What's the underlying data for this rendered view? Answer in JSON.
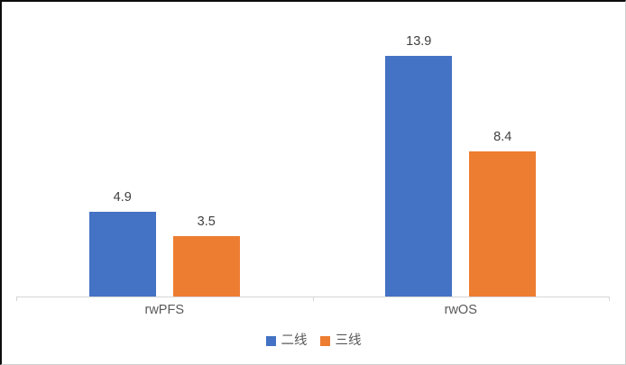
{
  "chart_data": {
    "type": "bar",
    "categories": [
      "rwPFS",
      "rwOS"
    ],
    "series": [
      {
        "name": "二线",
        "color": "#4472C4",
        "values": [
          4.9,
          13.9
        ]
      },
      {
        "name": "三线",
        "color": "#ED7D31",
        "values": [
          3.5,
          8.4
        ]
      }
    ],
    "title": "",
    "xlabel": "",
    "ylabel": "",
    "ylim": [
      0,
      14
    ],
    "grid": false,
    "legend_position": "bottom",
    "data_label_decimals": 1
  },
  "colors": {
    "axis_line": "#D6D6D6",
    "data_label": "#404040",
    "category_label": "#595959",
    "legend_label": "#595959",
    "background": "#FFFFFF"
  }
}
